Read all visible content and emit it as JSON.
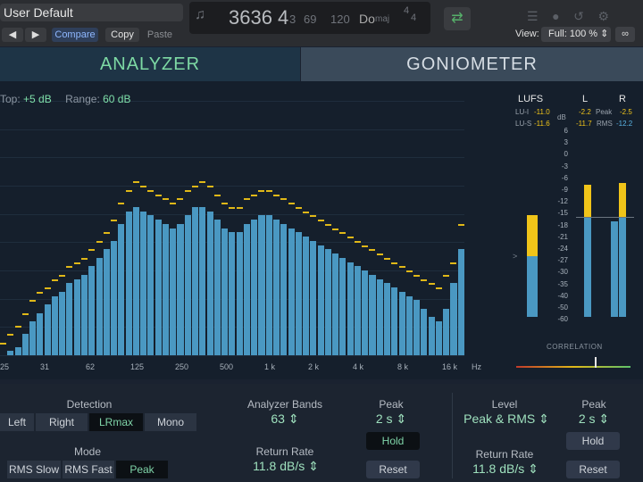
{
  "header": {
    "preset": "User Default",
    "lcd": {
      "position": "3636 4",
      "sub": "3",
      "beat": "69",
      "tempo": "120",
      "key": "Do",
      "key_mode": "maj",
      "sig_top": "4",
      "sig_bottom": "4"
    },
    "compare": "Compare",
    "copy": "Copy",
    "paste": "Paste",
    "view_label": "View:",
    "zoom": "Full: 100 %"
  },
  "tabs": {
    "analyzer": "ANALYZER",
    "goniometer": "GONIOMETER"
  },
  "info": {
    "top_label": "Top:",
    "top_value": "+5 dB",
    "range_label": "Range:",
    "range_value": "60 dB"
  },
  "x_ticks": [
    "25",
    "31",
    "62",
    "125",
    "250",
    "500",
    "1 k",
    "2 k",
    "4 k",
    "8 k",
    "16 k",
    "Hz"
  ],
  "meters": {
    "lufs": "LUFS",
    "l": "L",
    "r": "R",
    "lui": "LU-I",
    "lui_val": "-11.0",
    "lus": "LU-S",
    "lus_val": "-11.6",
    "db": "dB",
    "peak": "Peak",
    "rms": "RMS",
    "l_peak": "-2.2",
    "r_peak": "-2.5",
    "l_rms": "-11.7",
    "r_rms": "-12.2",
    "correlation": "CORRELATION",
    "scale": [
      "6",
      "3",
      "0",
      "-3",
      "-6",
      "-9",
      "-12",
      "-15",
      "-18",
      "-21",
      "-24",
      "-27",
      "-30",
      "-35",
      "-40",
      "-50",
      "-60"
    ]
  },
  "bottom": {
    "detection": "Detection",
    "det_options": [
      "Left",
      "Right",
      "LRmax",
      "Mono"
    ],
    "mode": "Mode",
    "mode_options": [
      "RMS Slow",
      "RMS Fast",
      "Peak"
    ],
    "bands_label": "Analyzer Bands",
    "bands_value": "63",
    "return_label": "Return Rate",
    "return_value": "11.8 dB/s",
    "peak_label": "Peak",
    "peak_value": "2 s",
    "hold": "Hold",
    "reset": "Reset",
    "level_label": "Level",
    "level_value": "Peak & RMS",
    "r_peak_label": "Peak",
    "r_peak_value": "2 s",
    "r_hold": "Hold",
    "r_return_label": "Return Rate",
    "r_return_value": "11.8 dB/s",
    "r_reset": "Reset"
  },
  "spectrum": {
    "scale": "dB",
    "levels": [
      -56,
      -54,
      -53,
      -50,
      -47,
      -45,
      -43,
      -41,
      -40,
      -38,
      -37,
      -36,
      -34,
      -32,
      -30,
      -28,
      -24,
      -21,
      -20,
      -21,
      -22,
      -23,
      -24,
      -25,
      -24,
      -22,
      -20,
      -20,
      -21,
      -23,
      -25,
      -26,
      -26,
      -24,
      -23,
      -22,
      -22,
      -23,
      -24,
      -25,
      -26,
      -27,
      -28,
      -29,
      -30,
      -31,
      -32,
      -33,
      -34,
      -35,
      -36,
      -37,
      -38,
      -39,
      -40,
      -41,
      -42,
      -44,
      -46,
      -47,
      -44,
      -38,
      -30
    ],
    "peaks": [
      -52,
      -50,
      -48,
      -45,
      -42,
      -40,
      -39,
      -37,
      -36,
      -34,
      -33,
      -32,
      -30,
      -28,
      -26,
      -23,
      -19,
      -16,
      -14,
      -15,
      -16,
      -17,
      -18,
      -19,
      -18,
      -16,
      -15,
      -14,
      -15,
      -17,
      -19,
      -20,
      -20,
      -18,
      -17,
      -16,
      -16,
      -17,
      -18,
      -19,
      -20,
      -21,
      -22,
      -23,
      -24,
      -25,
      -26,
      -27,
      -28,
      -29,
      -30,
      -31,
      -32,
      -33,
      -34,
      -35,
      -36,
      -37,
      -38,
      -39,
      -36,
      -33,
      -24
    ]
  }
}
